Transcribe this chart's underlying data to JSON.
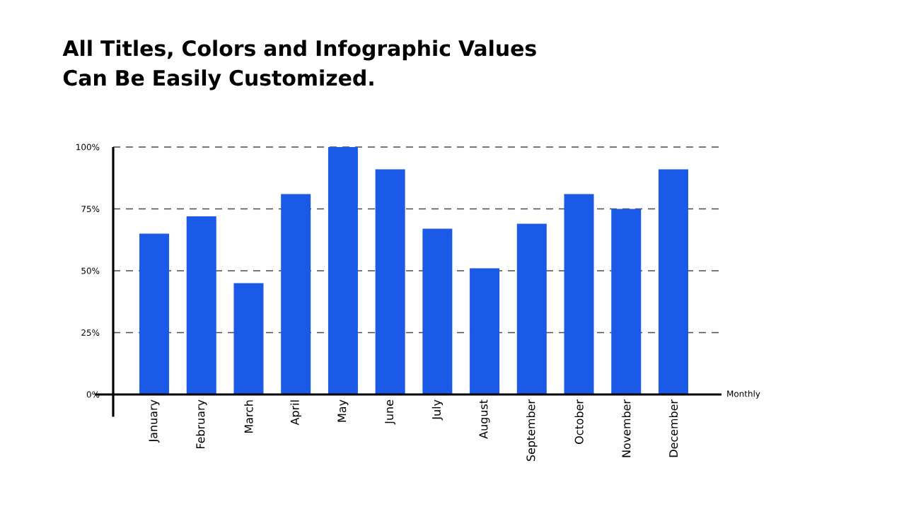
{
  "chart_data": {
    "type": "bar",
    "title": "All Titles, Colors and Infographic Values Can Be Easily Customized.",
    "xlabel": "Monthly",
    "categories": [
      "January",
      "February",
      "March",
      "April",
      "May",
      "June",
      "July",
      "August",
      "September",
      "October",
      "November",
      "December"
    ],
    "values": [
      65,
      72,
      45,
      81,
      100,
      91,
      67,
      51,
      69,
      81,
      75,
      91
    ],
    "color": "#1a5ae6",
    "ylim": [
      0,
      100
    ],
    "yticks": [
      {
        "value": 0,
        "label": "0%"
      },
      {
        "value": 25,
        "label": "25%"
      },
      {
        "value": 50,
        "label": "50%"
      },
      {
        "value": 75,
        "label": "75%"
      },
      {
        "value": 100,
        "label": "100%"
      }
    ],
    "grid": "y"
  }
}
